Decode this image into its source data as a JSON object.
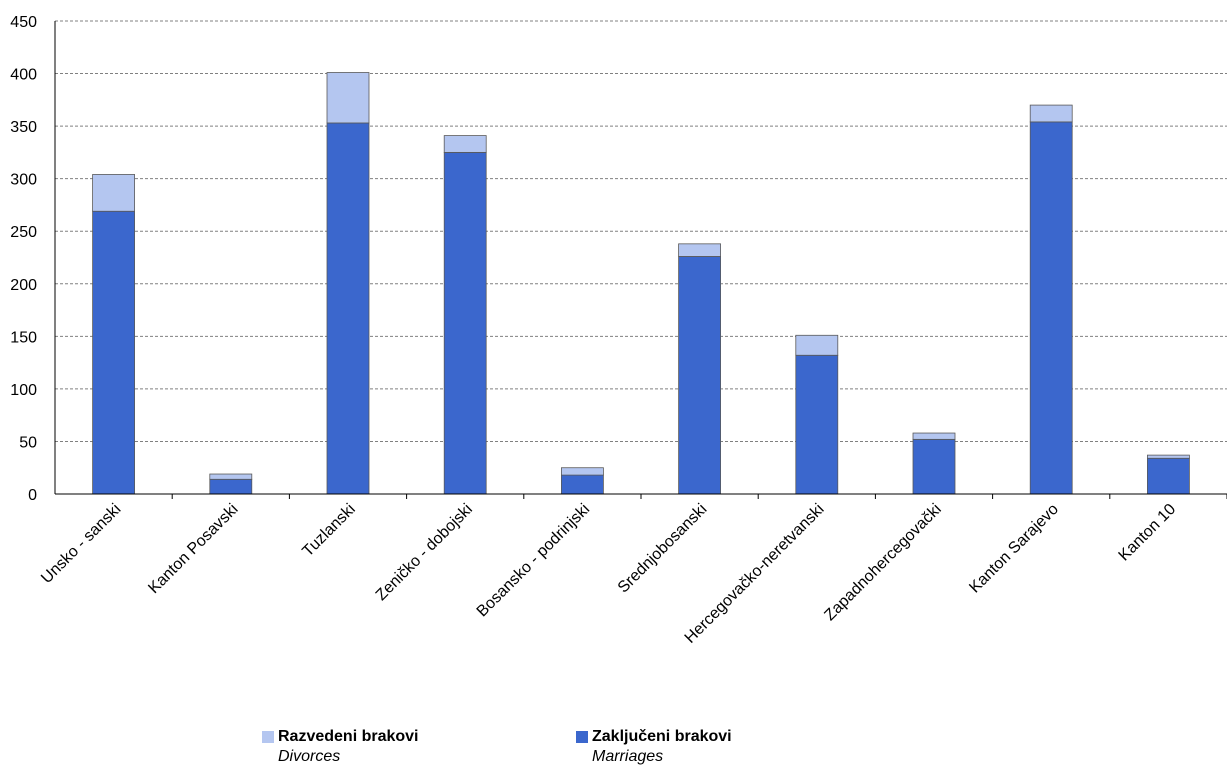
{
  "chart_data": {
    "type": "bar",
    "stacked": true,
    "categories": [
      "Unsko - sanski",
      "Kanton Posavski",
      "Tuzlanski",
      "Zeničko - dobojski",
      "Bosansko - podrinjski",
      "Srednjobosanski",
      "Hercegovačko-neretvanski",
      "Zapadnohercegovački",
      "Kanton Sarajevo",
      "Kanton 10"
    ],
    "series": [
      {
        "name": "Zaključeni brakovi",
        "subtitle": "Marriages",
        "values": [
          269,
          14,
          353,
          325,
          18,
          226,
          132,
          52,
          354,
          34
        ],
        "color": "#3b67cd"
      },
      {
        "name": "Razvedeni brakovi",
        "subtitle": "Divorces",
        "values": [
          35,
          5,
          48,
          16,
          7,
          12,
          19,
          6,
          16,
          3
        ],
        "color": "#b4c6f0"
      }
    ],
    "yticks": [
      0,
      50,
      100,
      150,
      200,
      250,
      300,
      350,
      400,
      450
    ],
    "ylim": [
      0,
      450
    ],
    "grid": true,
    "legend": "bottom"
  }
}
